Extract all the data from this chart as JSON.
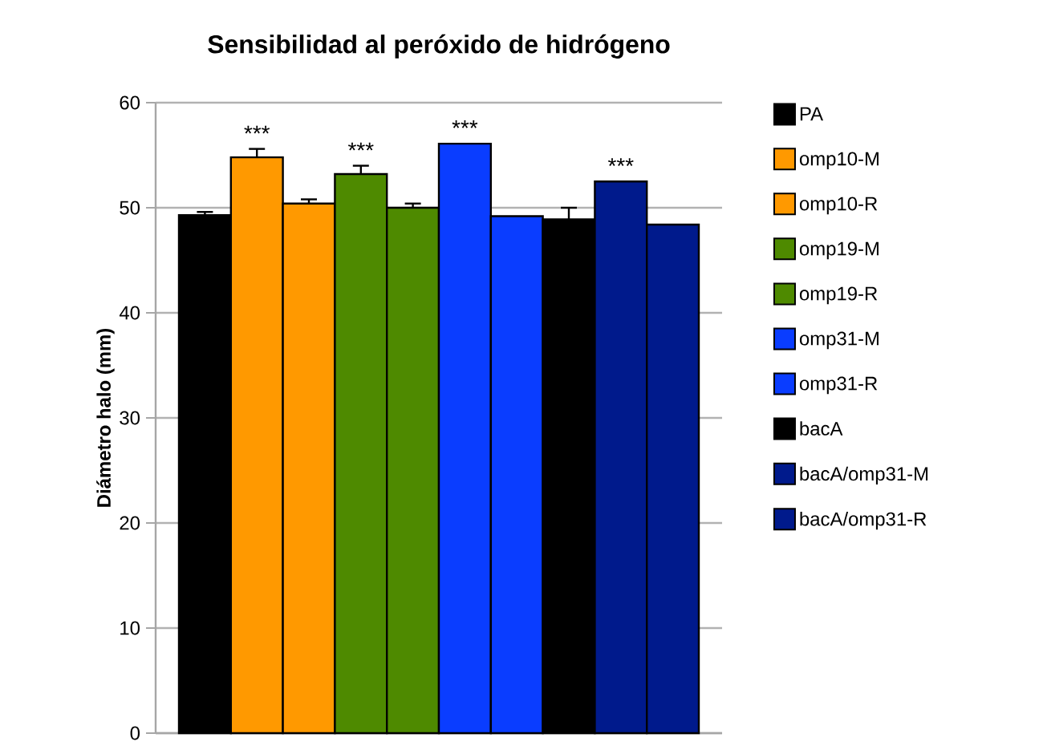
{
  "chart_data": {
    "type": "bar",
    "title": "Sensibilidad al peróxido de hidrógeno",
    "ylabel": "Diámetro halo (mm)",
    "categories": [
      null
    ],
    "series": [
      {
        "name": "PA",
        "color": "#000000",
        "values": [
          49.3
        ],
        "errors": [
          0.3
        ]
      },
      {
        "name": "omp10-M",
        "color": "#ff9900",
        "values": [
          54.8
        ],
        "errors": [
          0.8
        ],
        "value_labels": [
          "***"
        ]
      },
      {
        "name": "omp10-R",
        "color": "#ff9900",
        "values": [
          50.4
        ],
        "errors": [
          0.4
        ]
      },
      {
        "name": "omp19-M",
        "color": "#4e8a00",
        "values": [
          53.2
        ],
        "errors": [
          0.8
        ],
        "value_labels": [
          "***"
        ]
      },
      {
        "name": "omp19-R",
        "color": "#4e8a00",
        "values": [
          50.0
        ],
        "errors": [
          0.4
        ]
      },
      {
        "name": "omp31-M",
        "color": "#0a3dff",
        "values": [
          56.1
        ],
        "value_labels": [
          "***"
        ]
      },
      {
        "name": "omp31-R",
        "color": "#0a3dff",
        "values": [
          49.2
        ]
      },
      {
        "name": "bacA",
        "color": "#000000",
        "values": [
          48.9
        ],
        "errors": [
          1.1
        ]
      },
      {
        "name": "bacA/omp31-M",
        "color": "#001a8c",
        "values": [
          52.5
        ],
        "value_labels": [
          "***"
        ]
      },
      {
        "name": "bacA/omp31-R",
        "color": "#001a8c",
        "values": [
          48.4
        ]
      }
    ],
    "ylim": [
      0,
      60
    ],
    "yticks": [
      0,
      10,
      20,
      30,
      40,
      50,
      60
    ],
    "grid": "y",
    "legend": "right"
  }
}
